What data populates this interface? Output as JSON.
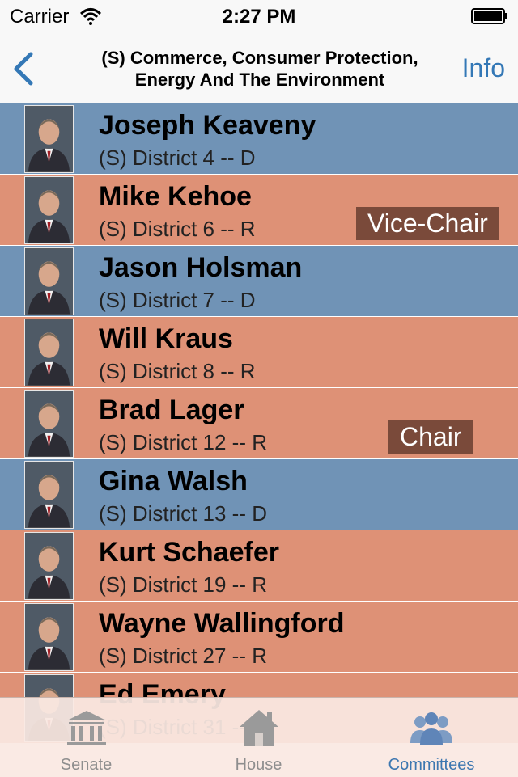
{
  "status_bar": {
    "carrier": "Carrier",
    "time": "2:27 PM"
  },
  "nav": {
    "title_line1": "(S) Commerce, Consumer Protection,",
    "title_line2": "Energy And The Environment",
    "info_label": "Info"
  },
  "members": [
    {
      "name": "Joseph Keaveny",
      "district": "(S) District 4 -- D",
      "party_color": "blue",
      "role": ""
    },
    {
      "name": "Mike Kehoe",
      "district": "(S) District 6 -- R",
      "party_color": "orange",
      "role": "Vice-Chair"
    },
    {
      "name": "Jason Holsman",
      "district": "(S) District 7 -- D",
      "party_color": "blue",
      "role": ""
    },
    {
      "name": "Will Kraus",
      "district": "(S) District 8 -- R",
      "party_color": "orange",
      "role": ""
    },
    {
      "name": "Brad Lager",
      "district": "(S) District 12 -- R",
      "party_color": "orange",
      "role": "Chair"
    },
    {
      "name": "Gina Walsh",
      "district": "(S) District 13 -- D",
      "party_color": "blue",
      "role": ""
    },
    {
      "name": "Kurt Schaefer",
      "district": "(S) District 19 -- R",
      "party_color": "orange",
      "role": ""
    },
    {
      "name": "Wayne Wallingford",
      "district": "(S) District 27 -- R",
      "party_color": "orange",
      "role": ""
    },
    {
      "name": "Ed Emery",
      "district": "(S) District 31 -- R",
      "party_color": "orange",
      "role": ""
    }
  ],
  "tabs": [
    {
      "label": "Senate",
      "icon": "senate-building-icon",
      "active": false
    },
    {
      "label": "House",
      "icon": "house-icon",
      "active": false
    },
    {
      "label": "Committees",
      "icon": "committees-people-icon",
      "active": true
    }
  ],
  "colors": {
    "democrat_row": "#7093b6",
    "republican_row": "#de9176",
    "role_badge": "#7a4a3a",
    "accent": "#3478b6"
  }
}
